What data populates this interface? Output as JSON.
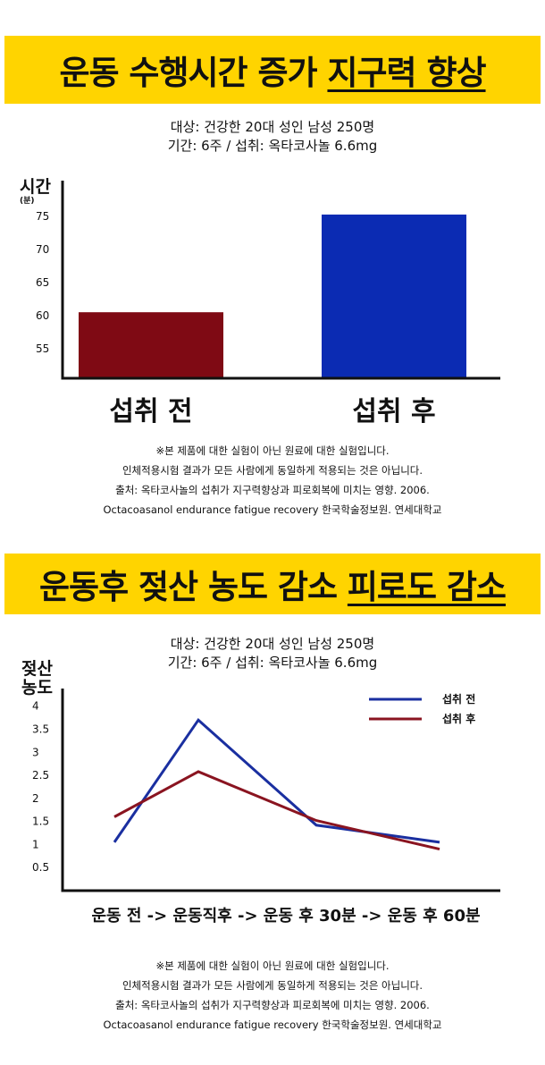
{
  "section1": {
    "title_main": "운동 수행시간 증가 ",
    "title_highlight": "지구력 향상",
    "subtitle_line1": "대상: 건강한 20대 성인 남성 250명",
    "subtitle_line2": "기간: 6주 / 섭취: 옥타코사놀 6.6mg",
    "ylabel": "시간",
    "yunit": "(분)",
    "notes": [
      "※본 제품에 대한 실험이 아닌 원료에 대한 실험입니다.",
      "인체적용시험 결과가 모든 사람에게 동일하게 적용되는 것은 아닙니다.",
      "출처: 옥타코사놀의 섭취가 지구력향상과 피로회복에 미치는 영향. 2006.",
      "Octacoasanol endurance fatigue recovery 한국학술정보원. 연세대학교"
    ]
  },
  "section2": {
    "title_main": "운동후 젖산 농도 감소 ",
    "title_highlight": "피로도 감소",
    "subtitle_line1": "대상: 건강한 20대 성인 남성 250명",
    "subtitle_line2": "기간: 6주 / 섭취: 옥타코사놀 6.6mg",
    "ylabel_line1": "젖산",
    "ylabel_line2": "농도",
    "xlabel": "운동 전 -> 운동직후 -> 운동 후 30분 -> 운동 후 60분",
    "notes": [
      "※본 제품에 대한 실험이 아닌 원료에 대한 실험입니다.",
      "인체적용시험 결과가 모든 사람에게 동일하게 적용되는 것은 아닙니다.",
      "출처: 옥타코사놀의 섭취가 지구력향상과 피로회복에 미치는 영향. 2006.",
      "Octacoasanol endurance fatigue recovery 한국학술정보원. 연세대학교"
    ]
  },
  "chart_data": [
    {
      "type": "bar",
      "categories": [
        "섭취 전",
        "섭취 후"
      ],
      "values": [
        60.5,
        75.3
      ],
      "ylabel": "시간 (분)",
      "yticks": [
        55,
        60,
        65,
        70,
        75
      ],
      "ylim": [
        50.5,
        78
      ],
      "colors": [
        "#7f0a14",
        "#0b2bb3"
      ],
      "grid": false
    },
    {
      "type": "line",
      "x": [
        0,
        1,
        2,
        3
      ],
      "series": [
        {
          "name": "섭취 전",
          "values": [
            1.05,
            3.7,
            1.42,
            1.05
          ],
          "color": "#1a2fa0"
        },
        {
          "name": "섭취 후",
          "values": [
            1.6,
            2.58,
            1.52,
            0.9
          ],
          "color": "#8a1420"
        }
      ],
      "ylabel": "젖산 농도",
      "xlabel": "운동 전 -> 운동직후 -> 운동 후 30분 -> 운동 후 60분",
      "yticks": [
        0.5,
        1,
        1.5,
        2,
        2.5,
        3,
        3.5,
        4
      ],
      "ytick_labels": [
        "0.5",
        "1",
        "1.5",
        "2",
        "2.5",
        "3",
        "3.5",
        "4"
      ],
      "ylim": [
        0,
        4.15
      ],
      "legend": "top-right",
      "grid": false
    }
  ]
}
